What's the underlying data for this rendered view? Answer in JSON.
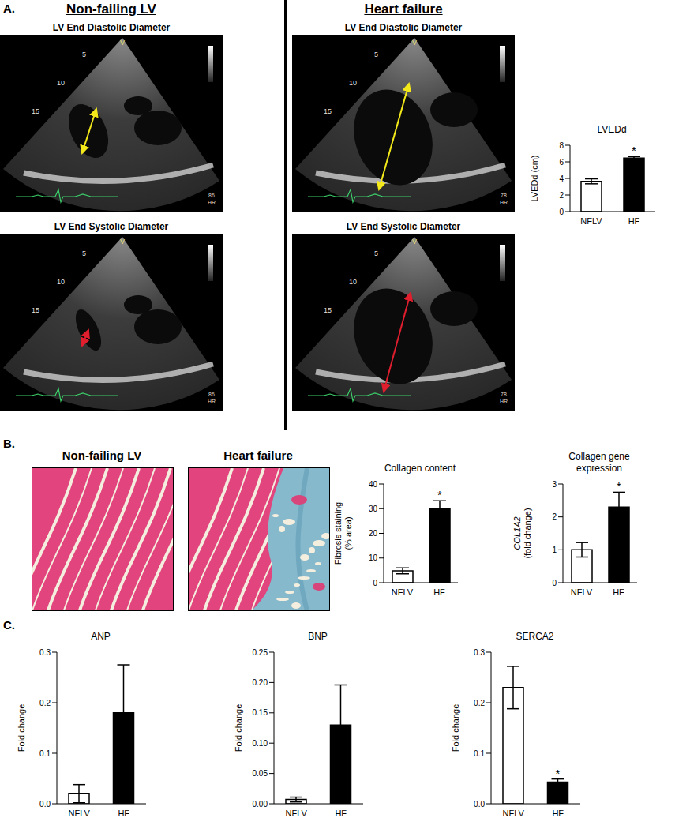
{
  "figure": {
    "panel_labels": [
      "A.",
      "B.",
      "C."
    ],
    "panel_a": {
      "columns": [
        "Non-failing LV",
        "Heart failure"
      ],
      "rows": [
        "LV End Diastolic Diameter",
        "LV End Systolic Diameter"
      ],
      "depth_marks": [
        5,
        10,
        15
      ],
      "probe_mark": "V",
      "heart_rate_label": "HR",
      "heart_rates": [
        86,
        78
      ]
    },
    "panel_b": {
      "columns": [
        "Non-failing LV",
        "Heart failure"
      ]
    }
  },
  "chart_data": [
    {
      "type": "bar",
      "title": "LVEDd",
      "ylabel": "LVEDd (cm)",
      "categories": [
        "NFLV",
        "HF"
      ],
      "values": [
        3.65,
        6.45
      ],
      "errors": [
        0.3,
        0.18
      ],
      "colors": [
        "#ffffff",
        "#000000"
      ],
      "ylim": [
        0,
        8
      ],
      "yticks": [
        0,
        2,
        4,
        6,
        8
      ],
      "annotations": [
        {
          "category": "HF",
          "text": "*"
        }
      ]
    },
    {
      "type": "bar",
      "title": "Collagen content",
      "ylabel": [
        "Fibrosis staining",
        "(% area)"
      ],
      "categories": [
        "NFLV",
        "HF"
      ],
      "values": [
        4.8,
        30
      ],
      "errors": [
        1.2,
        3.2
      ],
      "colors": [
        "#ffffff",
        "#000000"
      ],
      "ylim": [
        0,
        40
      ],
      "yticks": [
        0,
        10,
        20,
        30,
        40
      ],
      "annotations": [
        {
          "category": "HF",
          "text": "*"
        }
      ]
    },
    {
      "type": "bar",
      "title": "Collagen gene expression",
      "ylabel": [
        "COL1A2",
        "(fold change)"
      ],
      "categories": [
        "NFLV",
        "HF"
      ],
      "values": [
        1.0,
        2.3
      ],
      "errors": [
        0.22,
        0.45
      ],
      "colors": [
        "#ffffff",
        "#000000"
      ],
      "ylim": [
        0,
        3
      ],
      "yticks": [
        0,
        1,
        2,
        3
      ],
      "annotations": [
        {
          "category": "HF",
          "text": "*"
        }
      ]
    },
    {
      "type": "bar",
      "title": "ANP",
      "ylabel": "Fold change",
      "categories": [
        "NFLV",
        "HF"
      ],
      "values": [
        0.02,
        0.18
      ],
      "errors": [
        0.018,
        0.095
      ],
      "colors": [
        "#ffffff",
        "#000000"
      ],
      "ylim": [
        0,
        0.3
      ],
      "yticks": [
        {
          "value": 0,
          "label": "0.0"
        },
        0.1,
        0.2,
        0.3
      ]
    },
    {
      "type": "bar",
      "title": "BNP",
      "ylabel": "Fold change",
      "categories": [
        "NFLV",
        "HF"
      ],
      "values": [
        0.007,
        0.13
      ],
      "errors": [
        0.004,
        0.066
      ],
      "colors": [
        "#ffffff",
        "#000000"
      ],
      "ylim": [
        0,
        0.25
      ],
      "yticks": [
        {
          "value": 0,
          "label": "0.00"
        },
        0.05,
        {
          "value": 0.1,
          "label": "0.10"
        },
        0.15,
        {
          "value": 0.2,
          "label": "0.20"
        },
        0.25
      ]
    },
    {
      "type": "bar",
      "title": "SERCA2",
      "ylabel": "Fold change",
      "categories": [
        "NFLV",
        "HF"
      ],
      "values": [
        0.23,
        0.043
      ],
      "errors": [
        0.042,
        0.006
      ],
      "colors": [
        "#ffffff",
        "#000000"
      ],
      "ylim": [
        0,
        0.3
      ],
      "yticks": [
        {
          "value": 0,
          "label": "0.0"
        },
        0.1,
        0.2,
        0.3
      ],
      "annotations": [
        {
          "category": "HF",
          "text": "*"
        }
      ]
    }
  ]
}
